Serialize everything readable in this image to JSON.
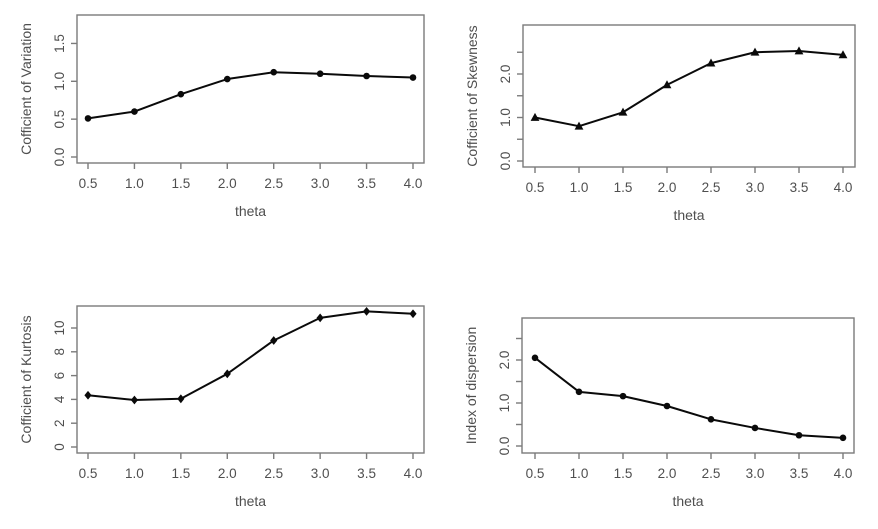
{
  "page": {
    "background": "#ffffff"
  },
  "style": {
    "line_color": "#0a0a0a",
    "frame_color": "#7b7b7b",
    "text_color": "#4f4f4f",
    "marker_color": "#0a0a0a"
  },
  "chart_data": [
    {
      "type": "line",
      "title": "",
      "xlabel": "theta",
      "ylabel": "Cofficient of Variation",
      "marker": "circle",
      "x": [
        0.5,
        1.0,
        1.5,
        2.0,
        2.5,
        3.0,
        3.5,
        4.0
      ],
      "y": [
        0.51,
        0.6,
        0.83,
        1.03,
        1.12,
        1.1,
        1.07,
        1.05
      ],
      "xtick_labels": [
        "0.5",
        "1.0",
        "1.5",
        "2.0",
        "2.5",
        "3.0",
        "3.5",
        "4.0"
      ],
      "yticks": {
        "values": [
          0,
          0.5,
          1.0,
          1.5
        ],
        "labels": [
          "0.0",
          "0.5",
          "1.0",
          "1.5"
        ]
      },
      "xlim": [
        0.36,
        4.14
      ],
      "ylim": [
        0,
        1.9
      ],
      "grid": false,
      "legend": "none"
    },
    {
      "type": "line",
      "title": "",
      "xlabel": "theta",
      "ylabel": "Cofficient of Skewness",
      "marker": "triangle",
      "x": [
        0.5,
        1.0,
        1.5,
        2.0,
        2.5,
        3.0,
        3.5,
        4.0
      ],
      "y": [
        1.0,
        0.8,
        1.12,
        1.75,
        2.25,
        2.5,
        2.53,
        2.44
      ],
      "xtick_labels": [
        "0.5",
        "1.0",
        "1.5",
        "2.0",
        "2.5",
        "3.0",
        "3.5",
        "4.0"
      ],
      "yticks": {
        "values": [
          0,
          0.5,
          1.0,
          1.5,
          2.0,
          2.5
        ],
        "labels": [
          "0.0",
          "",
          "1.0",
          "",
          "2.0",
          ""
        ]
      },
      "xlim": [
        0.36,
        4.14
      ],
      "ylim": [
        0,
        3.0
      ],
      "grid": false,
      "legend": "none"
    },
    {
      "type": "line",
      "title": "",
      "xlabel": "theta",
      "ylabel": "Cofficient of Kurtosis",
      "marker": "diamond",
      "x": [
        0.5,
        1.0,
        1.5,
        2.0,
        2.5,
        3.0,
        3.5,
        4.0
      ],
      "y": [
        4.35,
        3.95,
        4.05,
        6.15,
        8.95,
        10.85,
        11.4,
        11.2
      ],
      "xtick_labels": [
        "0.5",
        "1.0",
        "1.5",
        "2.0",
        "2.5",
        "3.0",
        "3.5",
        "4.0"
      ],
      "yticks": {
        "values": [
          0,
          2,
          4,
          6,
          8,
          10
        ],
        "labels": [
          "0",
          "2",
          "4",
          "6",
          "8",
          "10"
        ]
      },
      "xlim": [
        0.36,
        4.14
      ],
      "ylim": [
        0,
        12.3
      ],
      "grid": false,
      "legend": "none"
    },
    {
      "type": "line",
      "title": "",
      "xlabel": "theta",
      "ylabel": "Index of dispersion",
      "marker": "circle",
      "x": [
        0.5,
        1.0,
        1.5,
        2.0,
        2.5,
        3.0,
        3.5,
        4.0
      ],
      "y": [
        2.05,
        1.26,
        1.16,
        0.93,
        0.62,
        0.42,
        0.25,
        0.19
      ],
      "xtick_labels": [
        "0.5",
        "1.0",
        "1.5",
        "2.0",
        "2.5",
        "3.0",
        "3.5",
        "4.0"
      ],
      "yticks": {
        "values": [
          0,
          0.5,
          1.0,
          1.5,
          2.0,
          2.5
        ],
        "labels": [
          "0.0",
          "",
          "1.0",
          "",
          "2.0",
          ""
        ]
      },
      "xlim": [
        0.36,
        4.14
      ],
      "ylim": [
        0,
        3.0
      ],
      "grid": false,
      "legend": "none"
    }
  ]
}
